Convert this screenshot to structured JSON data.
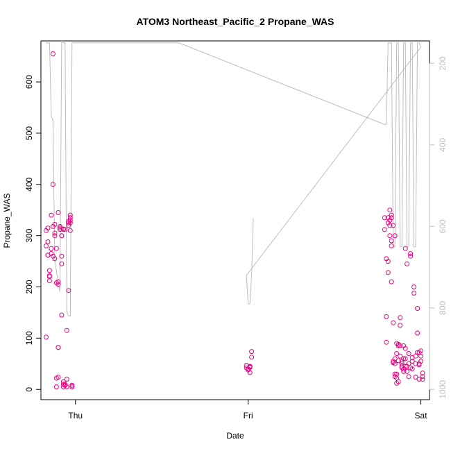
{
  "chart_data": {
    "type": "scatter",
    "title": "ATOM3 Northeast_Pacific_2 Propane_WAS",
    "xlabel": "Date",
    "ylabel": "Propane_WAS",
    "x_ticks": [
      "Thu",
      "Fri",
      "Sat"
    ],
    "x_range_days": [
      -0.2,
      2.05
    ],
    "y_ticks": [
      0,
      100,
      200,
      300,
      400,
      500,
      600
    ],
    "ylim": [
      -20,
      680
    ],
    "right_axis": {
      "ticks": [
        200,
        400,
        600,
        800,
        1000
      ],
      "range": [
        1025,
        145
      ],
      "reversed": true,
      "color": "#bdbdbd"
    },
    "point_color": "#e6007e",
    "line_color": "#bdbdbd",
    "grid": false,
    "series": [
      {
        "kind": "points",
        "x": [
          -0.17,
          -0.17,
          -0.17,
          -0.16,
          -0.16,
          -0.16,
          -0.16,
          -0.15,
          -0.15,
          -0.15,
          -0.15,
          -0.14,
          -0.14,
          -0.14,
          -0.13,
          -0.13,
          -0.13,
          -0.13,
          -0.12,
          -0.12,
          -0.12,
          -0.12,
          -0.11,
          -0.11,
          -0.11,
          -0.11,
          -0.1,
          -0.1,
          -0.1,
          -0.1,
          -0.1,
          -0.1,
          -0.09,
          -0.09,
          -0.09,
          -0.09,
          -0.08,
          -0.08,
          -0.08,
          -0.08,
          -0.08,
          -0.07,
          -0.07,
          -0.07,
          -0.07,
          -0.07,
          -0.06,
          -0.06,
          -0.06,
          -0.06,
          -0.05,
          -0.05,
          -0.05,
          -0.04,
          -0.04,
          -0.04,
          -0.04,
          -0.03,
          -0.03,
          -0.03,
          -0.03,
          -0.03,
          -0.02,
          -0.02,
          -0.02,
          -0.02
        ],
        "y": [
          102,
          310,
          280,
          262,
          315,
          288,
          262,
          232,
          222,
          212,
          220,
          275,
          265,
          340,
          655,
          400,
          260,
          318,
          305,
          322,
          300,
          255,
          208,
          275,
          22,
          5,
          24,
          82,
          82,
          210,
          205,
          345,
          312,
          318,
          315,
          315,
          300,
          300,
          145,
          260,
          245,
          15,
          10,
          313,
          312,
          5,
          8,
          8,
          312,
          10,
          5,
          20,
          115,
          328,
          325,
          193,
          320,
          325,
          310,
          330,
          335,
          340,
          8,
          8,
          5,
          5
        ]
      },
      {
        "kind": "points",
        "x": [
          0.99,
          0.99,
          1.0,
          1.0,
          1.0,
          1.01,
          1.01,
          1.01,
          1.01,
          1.02,
          1.02
        ],
        "y": [
          47,
          42,
          40,
          38,
          40,
          45,
          44,
          33,
          43,
          63,
          74
        ]
      },
      {
        "kind": "points",
        "x": [
          1.79,
          1.79,
          1.8,
          1.8,
          1.8,
          1.81,
          1.81,
          1.81,
          1.81,
          1.82,
          1.82,
          1.82,
          1.82,
          1.83,
          1.83,
          1.83,
          1.83,
          1.83,
          1.84,
          1.84,
          1.84,
          1.84,
          1.85,
          1.85,
          1.85,
          1.85,
          1.85,
          1.86,
          1.86,
          1.86,
          1.86,
          1.86,
          1.87,
          1.87,
          1.87,
          1.87,
          1.88,
          1.88,
          1.88,
          1.88,
          1.89,
          1.89,
          1.89,
          1.89,
          1.9,
          1.9,
          1.9,
          1.9,
          1.91,
          1.91,
          1.91,
          1.91,
          1.92,
          1.92,
          1.92,
          1.93,
          1.93,
          1.93,
          1.94,
          1.94,
          1.94,
          1.95,
          1.95,
          1.95,
          1.96,
          1.96,
          1.97,
          1.97,
          1.97,
          1.98,
          1.98,
          1.98,
          1.99,
          1.99,
          1.99,
          1.99,
          2.0,
          2.0,
          2.0,
          2.01,
          2.01,
          2.01
        ],
        "y": [
          335,
          312,
          255,
          142,
          92,
          325,
          228,
          335,
          250,
          300,
          320,
          350,
          330,
          340,
          335,
          290,
          280,
          210,
          130,
          52,
          55,
          320,
          300,
          30,
          25,
          60,
          50,
          70,
          30,
          22,
          12,
          90,
          15,
          88,
          85,
          56,
          125,
          140,
          85,
          65,
          50,
          45,
          42,
          55,
          40,
          35,
          60,
          85,
          275,
          60,
          45,
          80,
          245,
          35,
          45,
          70,
          25,
          50,
          265,
          260,
          42,
          62,
          55,
          40,
          200,
          188,
          65,
          50,
          24,
          158,
          110,
          72,
          72,
          50,
          48,
          20,
          75,
          65,
          55,
          25,
          32,
          20
        ]
      },
      {
        "kind": "line",
        "axis": "right",
        "x": [
          -0.17,
          -0.16,
          -0.15,
          -0.14,
          -0.13,
          -0.12,
          -0.11,
          -0.1,
          -0.09,
          -0.08,
          -0.07,
          -0.06,
          -0.05,
          -0.04,
          -0.03,
          -0.02,
          0.6,
          1.79,
          1.8,
          1.81,
          1.82,
          1.83,
          1.84,
          1.85,
          1.86,
          1.87,
          1.88,
          1.89,
          1.9,
          1.91,
          1.92,
          1.93,
          1.94,
          1.95,
          1.96,
          1.97,
          1.98,
          1.99,
          2.0,
          0.99,
          1.0,
          1.01,
          1.02,
          1.03
        ],
        "y": [
          150,
          150,
          150,
          330,
          340,
          680,
          710,
          740,
          760,
          140,
          150,
          150,
          810,
          820,
          820,
          150,
          150,
          350,
          350,
          150,
          150,
          150,
          650,
          650,
          150,
          150,
          650,
          650,
          150,
          150,
          650,
          650,
          150,
          150,
          650,
          650,
          150,
          150,
          160,
          720,
          790,
          790,
          720,
          580
        ]
      }
    ]
  }
}
